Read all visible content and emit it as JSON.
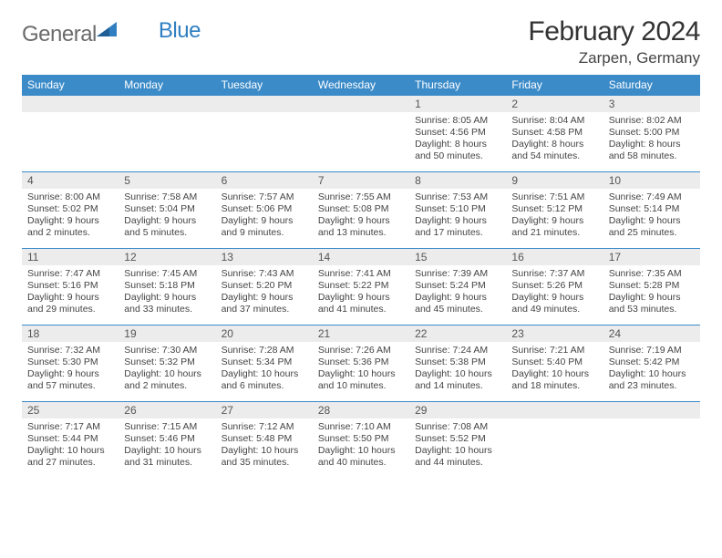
{
  "brand": {
    "part1": "General",
    "part2": "Blue"
  },
  "title": "February 2024",
  "location": "Zarpen, Germany",
  "colors": {
    "header_bg": "#3b8bc9",
    "daynum_bg": "#ececec",
    "rule": "#3b8bc9",
    "text": "#333333",
    "muted": "#555555"
  },
  "day_names": [
    "Sunday",
    "Monday",
    "Tuesday",
    "Wednesday",
    "Thursday",
    "Friday",
    "Saturday"
  ],
  "weeks": [
    [
      null,
      null,
      null,
      null,
      {
        "n": "1",
        "sr": "Sunrise: 8:05 AM",
        "ss": "Sunset: 4:56 PM",
        "d1": "Daylight: 8 hours",
        "d2": "and 50 minutes."
      },
      {
        "n": "2",
        "sr": "Sunrise: 8:04 AM",
        "ss": "Sunset: 4:58 PM",
        "d1": "Daylight: 8 hours",
        "d2": "and 54 minutes."
      },
      {
        "n": "3",
        "sr": "Sunrise: 8:02 AM",
        "ss": "Sunset: 5:00 PM",
        "d1": "Daylight: 8 hours",
        "d2": "and 58 minutes."
      }
    ],
    [
      {
        "n": "4",
        "sr": "Sunrise: 8:00 AM",
        "ss": "Sunset: 5:02 PM",
        "d1": "Daylight: 9 hours",
        "d2": "and 2 minutes."
      },
      {
        "n": "5",
        "sr": "Sunrise: 7:58 AM",
        "ss": "Sunset: 5:04 PM",
        "d1": "Daylight: 9 hours",
        "d2": "and 5 minutes."
      },
      {
        "n": "6",
        "sr": "Sunrise: 7:57 AM",
        "ss": "Sunset: 5:06 PM",
        "d1": "Daylight: 9 hours",
        "d2": "and 9 minutes."
      },
      {
        "n": "7",
        "sr": "Sunrise: 7:55 AM",
        "ss": "Sunset: 5:08 PM",
        "d1": "Daylight: 9 hours",
        "d2": "and 13 minutes."
      },
      {
        "n": "8",
        "sr": "Sunrise: 7:53 AM",
        "ss": "Sunset: 5:10 PM",
        "d1": "Daylight: 9 hours",
        "d2": "and 17 minutes."
      },
      {
        "n": "9",
        "sr": "Sunrise: 7:51 AM",
        "ss": "Sunset: 5:12 PM",
        "d1": "Daylight: 9 hours",
        "d2": "and 21 minutes."
      },
      {
        "n": "10",
        "sr": "Sunrise: 7:49 AM",
        "ss": "Sunset: 5:14 PM",
        "d1": "Daylight: 9 hours",
        "d2": "and 25 minutes."
      }
    ],
    [
      {
        "n": "11",
        "sr": "Sunrise: 7:47 AM",
        "ss": "Sunset: 5:16 PM",
        "d1": "Daylight: 9 hours",
        "d2": "and 29 minutes."
      },
      {
        "n": "12",
        "sr": "Sunrise: 7:45 AM",
        "ss": "Sunset: 5:18 PM",
        "d1": "Daylight: 9 hours",
        "d2": "and 33 minutes."
      },
      {
        "n": "13",
        "sr": "Sunrise: 7:43 AM",
        "ss": "Sunset: 5:20 PM",
        "d1": "Daylight: 9 hours",
        "d2": "and 37 minutes."
      },
      {
        "n": "14",
        "sr": "Sunrise: 7:41 AM",
        "ss": "Sunset: 5:22 PM",
        "d1": "Daylight: 9 hours",
        "d2": "and 41 minutes."
      },
      {
        "n": "15",
        "sr": "Sunrise: 7:39 AM",
        "ss": "Sunset: 5:24 PM",
        "d1": "Daylight: 9 hours",
        "d2": "and 45 minutes."
      },
      {
        "n": "16",
        "sr": "Sunrise: 7:37 AM",
        "ss": "Sunset: 5:26 PM",
        "d1": "Daylight: 9 hours",
        "d2": "and 49 minutes."
      },
      {
        "n": "17",
        "sr": "Sunrise: 7:35 AM",
        "ss": "Sunset: 5:28 PM",
        "d1": "Daylight: 9 hours",
        "d2": "and 53 minutes."
      }
    ],
    [
      {
        "n": "18",
        "sr": "Sunrise: 7:32 AM",
        "ss": "Sunset: 5:30 PM",
        "d1": "Daylight: 9 hours",
        "d2": "and 57 minutes."
      },
      {
        "n": "19",
        "sr": "Sunrise: 7:30 AM",
        "ss": "Sunset: 5:32 PM",
        "d1": "Daylight: 10 hours",
        "d2": "and 2 minutes."
      },
      {
        "n": "20",
        "sr": "Sunrise: 7:28 AM",
        "ss": "Sunset: 5:34 PM",
        "d1": "Daylight: 10 hours",
        "d2": "and 6 minutes."
      },
      {
        "n": "21",
        "sr": "Sunrise: 7:26 AM",
        "ss": "Sunset: 5:36 PM",
        "d1": "Daylight: 10 hours",
        "d2": "and 10 minutes."
      },
      {
        "n": "22",
        "sr": "Sunrise: 7:24 AM",
        "ss": "Sunset: 5:38 PM",
        "d1": "Daylight: 10 hours",
        "d2": "and 14 minutes."
      },
      {
        "n": "23",
        "sr": "Sunrise: 7:21 AM",
        "ss": "Sunset: 5:40 PM",
        "d1": "Daylight: 10 hours",
        "d2": "and 18 minutes."
      },
      {
        "n": "24",
        "sr": "Sunrise: 7:19 AM",
        "ss": "Sunset: 5:42 PM",
        "d1": "Daylight: 10 hours",
        "d2": "and 23 minutes."
      }
    ],
    [
      {
        "n": "25",
        "sr": "Sunrise: 7:17 AM",
        "ss": "Sunset: 5:44 PM",
        "d1": "Daylight: 10 hours",
        "d2": "and 27 minutes."
      },
      {
        "n": "26",
        "sr": "Sunrise: 7:15 AM",
        "ss": "Sunset: 5:46 PM",
        "d1": "Daylight: 10 hours",
        "d2": "and 31 minutes."
      },
      {
        "n": "27",
        "sr": "Sunrise: 7:12 AM",
        "ss": "Sunset: 5:48 PM",
        "d1": "Daylight: 10 hours",
        "d2": "and 35 minutes."
      },
      {
        "n": "28",
        "sr": "Sunrise: 7:10 AM",
        "ss": "Sunset: 5:50 PM",
        "d1": "Daylight: 10 hours",
        "d2": "and 40 minutes."
      },
      {
        "n": "29",
        "sr": "Sunrise: 7:08 AM",
        "ss": "Sunset: 5:52 PM",
        "d1": "Daylight: 10 hours",
        "d2": "and 44 minutes."
      },
      null,
      null
    ]
  ]
}
